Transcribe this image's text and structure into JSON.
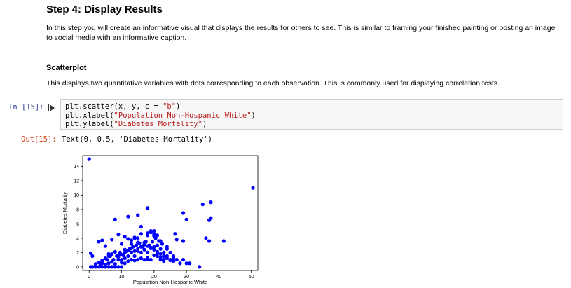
{
  "markdown": {
    "heading": "Step 4: Display Results",
    "intro": "In this step you will create an informative visual that displays the results for others to see. This is similar to framing your finished painting or posting an image to social media with an informative caption.",
    "subheading": "Scatterplot",
    "description": "This displays two quantitative variables with dots corresponding to each observation. This is commonly used for displaying correlation tests."
  },
  "cell": {
    "in_prompt": "In [15]:",
    "out_prompt": "Out[15]:",
    "code_lines": [
      {
        "pre": "plt.scatter(x, y, c = ",
        "str": "\"b\"",
        "post": ")"
      },
      {
        "pre": "plt.xlabel(",
        "str": "\"Population Non-Hospanic White\"",
        "post": ")"
      },
      {
        "pre": "plt.ylabel(",
        "str": "\"Diabetes Mortality\"",
        "post": ")"
      }
    ],
    "output_text": "Text(0, 0.5, 'Diabetes Mortality')",
    "run_icon": "run-arrow-icon"
  },
  "chart_data": {
    "type": "scatter",
    "xlabel": "Population Non-Hospanic White",
    "ylabel": "Diabetes Mortality",
    "xlim": [
      -2,
      52
    ],
    "ylim": [
      -0.5,
      15.5
    ],
    "xticks": [
      0,
      10,
      20,
      30,
      40,
      50
    ],
    "yticks": [
      0,
      2,
      4,
      6,
      8,
      10,
      12,
      14
    ],
    "color": "#0000ff",
    "x": [
      0,
      0.5,
      1,
      1,
      2,
      2,
      3,
      3.5,
      4,
      4,
      5,
      5,
      5.5,
      6,
      6,
      6.5,
      7,
      7,
      7.5,
      8,
      8,
      8.5,
      9,
      9,
      9.5,
      10,
      10,
      10.5,
      11,
      11,
      11.5,
      12,
      12,
      12.5,
      13,
      13,
      13.5,
      14,
      14,
      14.5,
      15,
      15,
      15.5,
      16,
      16,
      16.5,
      17,
      17,
      17.5,
      18,
      18,
      18.5,
      19,
      19,
      19.5,
      20,
      20,
      20.5,
      21,
      21,
      21.5,
      22,
      22,
      22.5,
      23,
      23,
      24,
      24,
      25,
      25,
      26,
      27,
      28,
      29,
      30,
      31,
      34,
      1,
      2,
      3,
      4,
      5,
      6,
      7,
      8,
      9,
      10,
      11,
      12,
      13,
      14,
      15,
      16,
      17,
      18,
      19,
      20,
      21,
      22,
      23,
      24,
      25,
      26,
      9,
      11,
      13,
      15,
      17,
      19,
      21,
      23,
      10,
      14,
      18,
      22,
      26,
      2,
      4,
      6,
      3,
      5,
      7,
      9,
      11,
      12,
      14,
      16,
      18,
      20,
      22,
      24,
      13,
      15,
      17,
      19,
      21,
      16,
      18,
      20,
      8,
      12,
      0.5,
      15,
      4,
      14,
      10,
      19,
      18,
      29,
      37.5,
      35,
      36,
      37,
      41.5,
      29,
      30,
      37,
      37.5,
      50.5,
      19,
      20,
      26.5,
      27
    ],
    "y": [
      15,
      0,
      0,
      0,
      0.1,
      0,
      0,
      0.2,
      0.5,
      0,
      0.3,
      0,
      1,
      0.5,
      0,
      1.5,
      0.7,
      0,
      1,
      0.4,
      0,
      1.5,
      1,
      0,
      2,
      1,
      0,
      1.6,
      1.2,
      0.5,
      2.2,
      1.5,
      0.8,
      2.5,
      2,
      1,
      2.8,
      1.5,
      0.9,
      3,
      2.2,
      1,
      3.3,
      2,
      1.2,
      2.8,
      2.4,
      1,
      3.5,
      2,
      1.3,
      3,
      2.6,
      1,
      3.5,
      2.8,
      1.6,
      4,
      3,
      1.5,
      3.6,
      2.5,
      1,
      3.2,
      2,
      1,
      2.8,
      1.5,
      2,
      1,
      1.5,
      1,
      0.5,
      1,
      0.5,
      0.5,
      0,
      1.5,
      0.3,
      0.6,
      0.9,
      1.2,
      1.5,
      1.8,
      2.1,
      1.4,
      1.7,
      2,
      2.3,
      2.6,
      2.2,
      2.5,
      2.8,
      3.1,
      2.9,
      2.7,
      2.4,
      2.1,
      1.8,
      1.5,
      1.2,
      0.9,
      0.8,
      1.6,
      2.4,
      3.2,
      4,
      3.4,
      2.6,
      1.9,
      0.8,
      0.6,
      0.9,
      1.1,
      1.3,
      1.2,
      0.4,
      0.6,
      1.8,
      3.5,
      2.9,
      3.8,
      4.5,
      4.2,
      3.9,
      4.1,
      4.6,
      4.7,
      4.3,
      3.6,
      2.5,
      3.7,
      3.4,
      3.1,
      5,
      4.4,
      5.6,
      4.4,
      4.6,
      6.6,
      7,
      1.9,
      7.2,
      3.7,
      4,
      3.2,
      4.9,
      8.2,
      7.5,
      9,
      8.7,
      4,
      3.6,
      3.6,
      3.6,
      6.6,
      6.5,
      6.8,
      11,
      4.8,
      5,
      4.6,
      3.8
    ]
  }
}
